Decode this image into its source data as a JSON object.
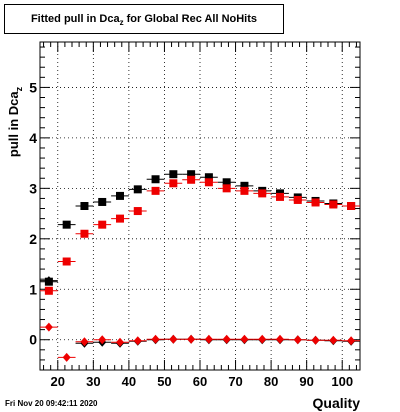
{
  "title": {
    "main": "Fitted pull in Dca",
    "sub": "z",
    "tail": " for Global Rec All NoHits"
  },
  "footer": {
    "date": "Fri Nov 20 09:42:11 2020"
  },
  "colors": {
    "black_series": "#000000",
    "red_series": "#ee0000",
    "grid": "#000000"
  },
  "chart_data": {
    "type": "scatter",
    "title": "Fitted pull in Dcaz for Global Rec All NoHits",
    "xlabel": "Quality",
    "ylabel": "pull in Dcaz",
    "xlim": [
      15,
      105
    ],
    "ylim": [
      -0.6,
      5.9
    ],
    "grid": true,
    "x_ticks": [
      20,
      30,
      40,
      50,
      60,
      70,
      80,
      90,
      100
    ],
    "y_ticks": [
      0,
      1,
      2,
      3,
      4,
      5
    ],
    "x_bin_width": 5,
    "series": [
      {
        "marker": "square",
        "color": "black",
        "x": [
          17.5,
          22.5,
          27.5,
          32.5,
          37.5,
          42.5,
          47.5,
          52.5,
          57.5,
          62.5,
          67.5,
          72.5,
          77.5,
          82.5,
          87.5,
          92.5,
          97.5,
          102.5
        ],
        "y": [
          1.15,
          2.28,
          2.65,
          2.73,
          2.85,
          2.98,
          3.18,
          3.28,
          3.28,
          3.22,
          3.12,
          3.05,
          2.95,
          2.9,
          2.82,
          2.75,
          2.7,
          2.65
        ]
      },
      {
        "marker": "square",
        "color": "red",
        "x": [
          17.5,
          22.5,
          27.5,
          32.5,
          37.5,
          42.5,
          47.5,
          52.5,
          57.5,
          62.5,
          67.5,
          72.5,
          77.5,
          82.5,
          87.5,
          92.5,
          97.5,
          102.5
        ],
        "y": [
          0.97,
          1.55,
          2.1,
          2.28,
          2.4,
          2.55,
          2.95,
          3.1,
          3.17,
          3.12,
          3.0,
          2.95,
          2.9,
          2.83,
          2.77,
          2.72,
          2.68,
          2.65
        ]
      },
      {
        "marker": "diamond",
        "color": "black",
        "x": [
          17.5,
          27.5,
          32.5,
          37.5,
          42.5,
          47.5,
          52.5,
          57.5,
          62.5,
          67.5,
          72.5,
          77.5,
          82.5,
          87.5,
          92.5,
          97.5,
          102.5
        ],
        "y": [
          1.17,
          -0.07,
          -0.05,
          -0.07,
          -0.03,
          0.0,
          0.01,
          0.01,
          0.0,
          0.0,
          0.0,
          0.0,
          0.0,
          0.0,
          -0.01,
          -0.02,
          -0.03
        ]
      },
      {
        "marker": "diamond",
        "color": "red",
        "x": [
          17.5,
          22.5,
          27.5,
          32.5,
          37.5,
          42.5,
          47.5,
          52.5,
          57.5,
          62.5,
          67.5,
          72.5,
          77.5,
          82.5,
          87.5,
          92.5,
          97.5,
          102.5
        ],
        "y": [
          0.25,
          -0.35,
          -0.04,
          0.0,
          -0.05,
          -0.02,
          0.01,
          0.01,
          0.01,
          0.01,
          0.01,
          0.01,
          0.01,
          0.01,
          0.0,
          -0.01,
          -0.01,
          -0.02
        ]
      }
    ]
  }
}
